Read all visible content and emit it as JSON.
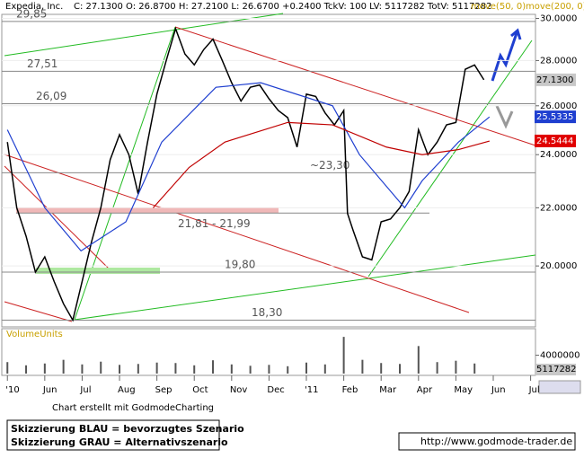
{
  "chart_data": {
    "type": "line",
    "log_scale": true,
    "header": "C: 27.1300 O: 26.8700 H: 27.2100 L: 26.6700 +0.2400 TckV: 100 LV: 5117282 TotV: 5117282",
    "legend_color": "#c8a000",
    "xlim": [
      -0.15,
      14.13
    ],
    "xticks": [
      {
        "value": 0,
        "label": "'10"
      },
      {
        "value": 1,
        "label": "Jun"
      },
      {
        "value": 2,
        "label": "Jul"
      },
      {
        "value": 3,
        "label": "Aug"
      },
      {
        "value": 4,
        "label": "Sep"
      },
      {
        "value": 5,
        "label": "Oct"
      },
      {
        "value": 6,
        "label": "Nov"
      },
      {
        "value": 7,
        "label": "Dec"
      },
      {
        "value": 8,
        "label": "'11"
      },
      {
        "value": 9,
        "label": "Feb"
      },
      {
        "value": 10,
        "label": "Mar"
      },
      {
        "value": 11,
        "label": "Apr"
      },
      {
        "value": 12,
        "label": "May"
      },
      {
        "value": 13,
        "label": "Jun"
      },
      {
        "value": 14,
        "label": "Jul"
      }
    ],
    "ylim": [
      18.1,
      30.2
    ],
    "yticks": [
      {
        "value": 30,
        "label": "30.0000"
      },
      {
        "value": 28,
        "label": "28.0000"
      },
      {
        "value": 26,
        "label": "26.0000"
      },
      {
        "value": 24,
        "label": "24.0000"
      },
      {
        "value": 22,
        "label": "22.0000"
      },
      {
        "value": 20,
        "label": "20.0000"
      }
    ],
    "series": [
      {
        "name": "Expedia, Inc.",
        "color": "#000000",
        "x": [
          0,
          0.25,
          0.5,
          0.75,
          1,
          1.25,
          1.5,
          1.75,
          2,
          2.25,
          2.5,
          2.75,
          3,
          3.25,
          3.5,
          3.75,
          4,
          4.25,
          4.5,
          4.75,
          5,
          5.25,
          5.5,
          5.75,
          6,
          6.25,
          6.5,
          6.75,
          7,
          7.25,
          7.5,
          7.75,
          8,
          8.25,
          8.5,
          8.75,
          9,
          9.1,
          9.25,
          9.5,
          9.75,
          10,
          10.25,
          10.5,
          10.75,
          11,
          11.25,
          11.5,
          11.75,
          12,
          12.25,
          12.5,
          12.75
        ],
        "values": [
          24.5,
          22,
          21,
          19.8,
          20.3,
          19.5,
          18.8,
          18.3,
          19.5,
          20.8,
          22,
          23.8,
          24.8,
          24,
          22.5,
          24.5,
          26.5,
          28,
          29.5,
          28.3,
          27.8,
          28.5,
          29,
          28,
          27,
          26.2,
          26.8,
          26.9,
          26.3,
          25.8,
          25.5,
          24.3,
          26.5,
          26.4,
          25.7,
          25.2,
          25.8,
          21.8,
          21.2,
          20.3,
          20.2,
          21.5,
          21.6,
          22,
          22.6,
          25,
          24,
          24.5,
          25.2,
          25.3,
          27.6,
          27.8,
          27.13
        ]
      },
      {
        "name": "move(50, 0)",
        "color": "#1f3fd0",
        "x": [
          0,
          1,
          1.97,
          3.17,
          4.13,
          5.58,
          6.78,
          8.7,
          9.42,
          10.63,
          11.1,
          12.07,
          12.9
        ],
        "values": [
          25,
          22,
          20.5,
          21.5,
          24.5,
          26.8,
          27,
          26,
          24,
          22,
          23,
          24.5,
          25.53
        ]
      },
      {
        "name": "move(200, 0)",
        "color": "#c00000",
        "x": [
          3.9,
          4.86,
          5.82,
          7.5,
          8.7,
          10.14,
          11.1,
          12.07,
          12.9
        ],
        "values": [
          22,
          23.5,
          24.5,
          25.3,
          25.2,
          24.3,
          24,
          24.2,
          24.54
        ]
      }
    ],
    "levels": [
      {
        "value": 29.85,
        "label": "29,85"
      },
      {
        "value": 27.51,
        "label": "27,51"
      },
      {
        "value": 26.09,
        "label": "26,09"
      },
      {
        "value": 23.3,
        "label": "~23,30"
      },
      {
        "value": 19.8,
        "label": "19,80"
      },
      {
        "value": 18.3,
        "label": "18,30"
      }
    ],
    "zone": {
      "from": 21.81,
      "to": 21.99,
      "label": "21,81 - 21,99"
    },
    "price_labels": [
      {
        "value": 27.13,
        "label": "27.1300",
        "color": "#c8c8c8"
      },
      {
        "value": 25.5335,
        "label": "25.5335",
        "color": "#1f3fd0"
      },
      {
        "value": 24.5444,
        "label": "24.5444",
        "color": "#e00000"
      }
    ],
    "volume": {
      "label": "VolumeUnits",
      "x": [
        0,
        0.5,
        1,
        1.5,
        2,
        2.5,
        3,
        3.5,
        4,
        4.5,
        5,
        5.5,
        6,
        6.5,
        7,
        7.5,
        8,
        8.5,
        9,
        9.5,
        10,
        10.5,
        11,
        11.5,
        12,
        12.5
      ],
      "values": [
        2500000,
        1800000,
        2200000,
        3000000,
        2000000,
        2600000,
        1900000,
        2100000,
        2400000,
        2300000,
        1800000,
        2900000,
        2000000,
        1700000,
        1900000,
        1600000,
        2400000,
        2000000,
        8000000,
        3000000,
        2300000,
        2100000,
        6000000,
        2500000,
        2800000,
        2200000
      ],
      "ylim": [
        0,
        9000000
      ],
      "yticks": [
        4000000
      ],
      "last": 5117282
    },
    "credit": "Chart erstellt mit GodmodeCharting",
    "notes": [
      "Skizzierung BLAU = bevorzugtes Szenario",
      "Skizzierung GRAU = Alternativszenario"
    ],
    "url": "http://www.godmode-trader.de"
  }
}
